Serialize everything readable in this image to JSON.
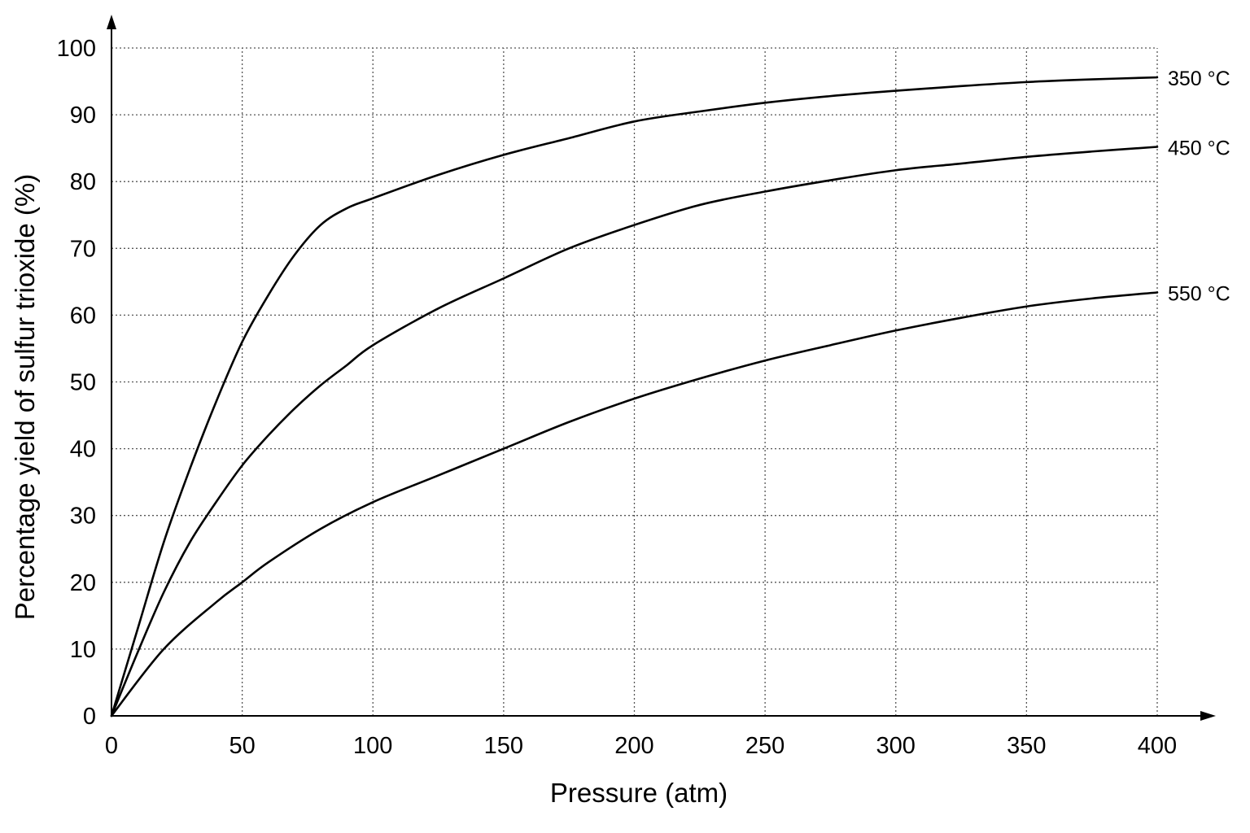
{
  "chart_data": {
    "type": "line",
    "title": "",
    "xlabel": "Pressure (atm)",
    "ylabel": "Percentage yield of sulfur trioxide (%)",
    "xlim": [
      0,
      400
    ],
    "ylim": [
      0,
      100
    ],
    "x_ticks": [
      "0",
      "50",
      "100",
      "150",
      "200",
      "250",
      "300",
      "350",
      "400"
    ],
    "y_ticks": [
      "0",
      "10",
      "20",
      "30",
      "40",
      "50",
      "60",
      "70",
      "80",
      "90",
      "100"
    ],
    "grid": true,
    "grid_style": "dotted",
    "line_color": "#000000",
    "series": [
      {
        "name": "350 °C",
        "x": [
          0,
          10,
          20,
          30,
          40,
          50,
          60,
          70,
          80,
          90,
          100,
          125,
          150,
          175,
          200,
          225,
          250,
          275,
          300,
          325,
          350,
          375,
          400
        ],
        "y": [
          0,
          13,
          26,
          37,
          47,
          56,
          63,
          69,
          73.5,
          76,
          77.5,
          81,
          84,
          86.5,
          89,
          90.5,
          91.8,
          92.8,
          93.6,
          94.3,
          94.9,
          95.3,
          95.6
        ]
      },
      {
        "name": "450 °C",
        "x": [
          0,
          10,
          20,
          30,
          40,
          50,
          60,
          70,
          80,
          90,
          100,
          125,
          150,
          175,
          200,
          225,
          250,
          275,
          300,
          325,
          350,
          375,
          400
        ],
        "y": [
          0,
          9.5,
          18.5,
          26,
          32,
          37.5,
          42,
          46,
          49.5,
          52.5,
          55.5,
          61,
          65.5,
          70,
          73.5,
          76.5,
          78.5,
          80.2,
          81.7,
          82.7,
          83.7,
          84.5,
          85.2
        ]
      },
      {
        "name": "550 °C",
        "x": [
          0,
          20,
          40,
          50,
          60,
          80,
          100,
          125,
          150,
          175,
          200,
          225,
          250,
          275,
          300,
          325,
          350,
          375,
          400
        ],
        "y": [
          0,
          10,
          17,
          20,
          23,
          28,
          32,
          36,
          40,
          44,
          47.5,
          50.5,
          53.2,
          55.5,
          57.7,
          59.6,
          61.3,
          62.5,
          63.4
        ]
      }
    ]
  }
}
